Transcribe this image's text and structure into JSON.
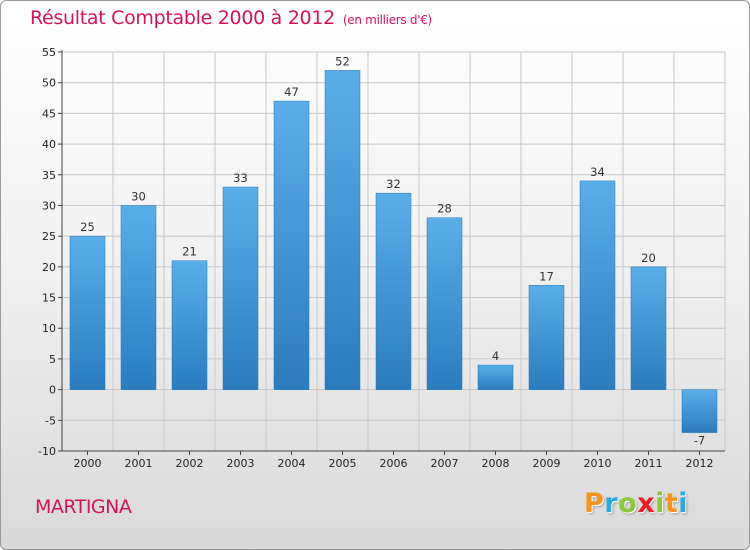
{
  "chart_data": {
    "type": "bar",
    "title": "Résultat Comptable 2000 à 2012",
    "unit": "(en milliers d'€)",
    "categories": [
      "2000",
      "2001",
      "2002",
      "2003",
      "2004",
      "2005",
      "2006",
      "2007",
      "2008",
      "2009",
      "2010",
      "2011",
      "2012"
    ],
    "values": [
      25,
      30,
      21,
      33,
      47,
      52,
      32,
      28,
      4,
      17,
      34,
      20,
      -7
    ],
    "value_labels": [
      "25",
      "30",
      "21",
      "33",
      "47",
      "52",
      "32",
      "28",
      "4",
      "17",
      "34",
      "20",
      "-7"
    ],
    "ylim": [
      -10,
      55
    ],
    "yticks": [
      -10,
      -5,
      0,
      5,
      10,
      15,
      20,
      25,
      30,
      35,
      40,
      45,
      50,
      55
    ],
    "ytick_labels": [
      "-10",
      "-5",
      "0",
      "5",
      "10",
      "15",
      "20",
      "25",
      "30",
      "35",
      "40",
      "45",
      "50",
      "55"
    ],
    "grid": true,
    "xlabel": "",
    "ylabel": ""
  },
  "commune": "MARTIGNA",
  "brand": {
    "letters": [
      "P",
      "r",
      "o",
      "x",
      "i",
      "t",
      "i"
    ],
    "colors": [
      "#f7941d",
      "#29abe2",
      "#8dc63f",
      "#ed1c24",
      "#8dc63f",
      "#f7941d",
      "#29abe2"
    ]
  },
  "colors": {
    "title": "#d4145a",
    "bar_light": "#5aaee8",
    "bar_dark": "#2a7cbf",
    "grid": "#c8c8c8",
    "axis": "#444444"
  }
}
